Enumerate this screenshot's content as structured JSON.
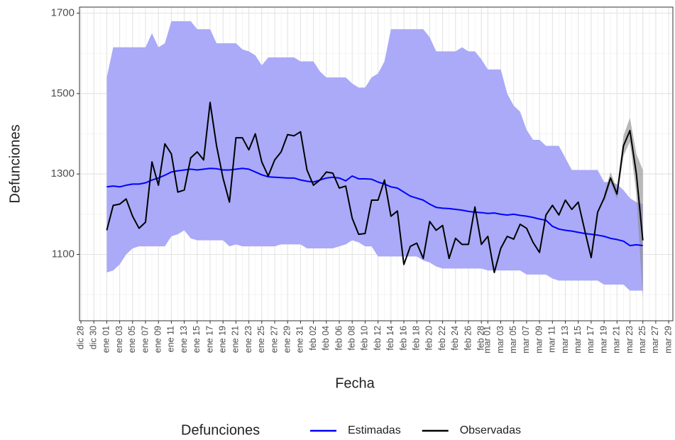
{
  "chart_data": {
    "type": "line",
    "x_label": "Fecha",
    "y_label": "Defunciones",
    "legend": "bottom",
    "legend_title": "Defunciones",
    "ylim": [
      935,
      1715
    ],
    "yticks": [
      1100,
      1300,
      1500,
      1700
    ],
    "yminor": [
      1000,
      1200,
      1400,
      1600
    ],
    "grid": true,
    "categories": [
      "dic 28",
      null,
      "dic 30",
      null,
      "ene 01",
      null,
      "ene 03",
      null,
      "ene 05",
      null,
      "ene 07",
      null,
      "ene 09",
      null,
      "ene 11",
      null,
      "ene 13",
      null,
      "ene 15",
      null,
      "ene 17",
      null,
      "ene 19",
      null,
      "ene 21",
      null,
      "ene 23",
      null,
      "ene 25",
      null,
      "ene 27",
      null,
      "ene 29",
      null,
      "ene 31",
      null,
      "feb 02",
      null,
      "feb 04",
      null,
      "feb 06",
      null,
      "feb 08",
      null,
      "feb 10",
      null,
      "feb 12",
      null,
      "feb 14",
      null,
      "feb 16",
      null,
      "feb 18",
      null,
      "feb 20",
      null,
      "feb 22",
      null,
      "feb 24",
      null,
      "feb 26",
      null,
      "feb 28",
      "mar 01",
      null,
      "mar 03",
      null,
      "mar 05",
      null,
      "mar 07",
      null,
      "mar 09",
      null,
      "mar 11",
      null,
      "mar 13",
      null,
      "mar 15",
      null,
      "mar 17",
      null,
      "mar 19",
      null,
      "mar 21",
      null,
      "mar 23",
      null,
      "mar 25",
      null,
      "mar 27",
      null,
      "mar 29"
    ],
    "bands": [
      {
        "color": "#aaaaf8",
        "upper": [
          null,
          null,
          null,
          null,
          1540,
          1615,
          1615,
          1615,
          1615,
          1615,
          1615,
          1650,
          1615,
          1625,
          1680,
          1680,
          1680,
          1680,
          1660,
          1660,
          1660,
          1625,
          1625,
          1625,
          1625,
          1610,
          1605,
          1595,
          1570,
          1590,
          1590,
          1590,
          1590,
          1590,
          1580,
          1580,
          1580,
          1555,
          1540,
          1540,
          1540,
          1540,
          1525,
          1515,
          1515,
          1540,
          1550,
          1580,
          1660,
          1660,
          1660,
          1660,
          1660,
          1660,
          1640,
          1605,
          1605,
          1605,
          1605,
          1615,
          1605,
          1605,
          1585,
          1560,
          1560,
          1560,
          1500,
          1470,
          1455,
          1410,
          1385,
          1385,
          1370,
          1370,
          1370,
          1340,
          1310,
          1310,
          1310,
          1310,
          1310,
          1280,
          1280,
          1275,
          1260,
          1240,
          1230,
          1225,
          null,
          null,
          null,
          null
        ],
        "lower": [
          null,
          null,
          null,
          null,
          1055,
          1060,
          1075,
          1100,
          1115,
          1120,
          1120,
          1120,
          1120,
          1120,
          1145,
          1150,
          1160,
          1140,
          1135,
          1135,
          1135,
          1135,
          1135,
          1120,
          1125,
          1120,
          1120,
          1120,
          1120,
          1120,
          1120,
          1125,
          1125,
          1125,
          1125,
          1115,
          1115,
          1115,
          1115,
          1115,
          1120,
          1125,
          1135,
          1130,
          1120,
          1120,
          1095,
          1095,
          1095,
          1095,
          1095,
          1095,
          1095,
          1085,
          1080,
          1070,
          1065,
          1065,
          1065,
          1065,
          1065,
          1065,
          1065,
          1060,
          1060,
          1060,
          1060,
          1060,
          1060,
          1050,
          1050,
          1050,
          1050,
          1040,
          1035,
          1035,
          1035,
          1035,
          1035,
          1035,
          1035,
          1025,
          1025,
          1025,
          1025,
          1010,
          1010,
          1010,
          null,
          null,
          null,
          null
        ]
      },
      {
        "color": "#888888",
        "upper": [
          null,
          null,
          null,
          null,
          null,
          null,
          null,
          null,
          null,
          null,
          null,
          null,
          null,
          null,
          null,
          null,
          null,
          null,
          null,
          null,
          null,
          null,
          null,
          null,
          null,
          null,
          null,
          null,
          null,
          null,
          null,
          null,
          null,
          null,
          null,
          null,
          null,
          null,
          null,
          null,
          null,
          null,
          null,
          null,
          null,
          null,
          null,
          null,
          null,
          null,
          null,
          null,
          null,
          null,
          null,
          null,
          null,
          null,
          null,
          null,
          null,
          null,
          null,
          null,
          null,
          null,
          null,
          null,
          null,
          null,
          null,
          null,
          null,
          null,
          null,
          null,
          null,
          null,
          null,
          null,
          null,
          1250,
          1305,
          1262,
          1395,
          1440,
          1350,
          1310,
          null,
          null,
          null,
          null
        ],
        "lower": [
          null,
          null,
          null,
          null,
          null,
          null,
          null,
          null,
          null,
          null,
          null,
          null,
          null,
          null,
          null,
          null,
          null,
          null,
          null,
          null,
          null,
          null,
          null,
          null,
          null,
          null,
          null,
          null,
          null,
          null,
          null,
          null,
          null,
          null,
          null,
          null,
          null,
          null,
          null,
          null,
          null,
          null,
          null,
          null,
          null,
          null,
          null,
          null,
          null,
          null,
          null,
          null,
          null,
          null,
          null,
          null,
          null,
          null,
          null,
          null,
          null,
          null,
          null,
          null,
          null,
          null,
          null,
          null,
          null,
          null,
          null,
          null,
          null,
          null,
          null,
          null,
          null,
          null,
          null,
          null,
          null,
          1230,
          1278,
          1238,
          1345,
          1380,
          1250,
          990,
          null,
          null,
          null,
          null
        ]
      }
    ],
    "series": [
      {
        "name": "Estimadas",
        "color": "#0000ff",
        "values": [
          null,
          null,
          null,
          null,
          1268,
          1270,
          1268,
          1272,
          1275,
          1275,
          1278,
          1285,
          1290,
          1297,
          1305,
          1308,
          1310,
          1312,
          1310,
          1312,
          1314,
          1313,
          1310,
          1310,
          1312,
          1314,
          1312,
          1305,
          1298,
          1293,
          1292,
          1291,
          1290,
          1290,
          1285,
          1282,
          1280,
          1285,
          1290,
          1292,
          1290,
          1283,
          1295,
          1288,
          1288,
          1287,
          1280,
          1275,
          1268,
          1265,
          1255,
          1245,
          1240,
          1235,
          1225,
          1217,
          1215,
          1214,
          1212,
          1210,
          1207,
          1205,
          1204,
          1202,
          1203,
          1200,
          1198,
          1200,
          1197,
          1195,
          1192,
          1188,
          1185,
          1170,
          1163,
          1160,
          1158,
          1155,
          1152,
          1150,
          1148,
          1145,
          1140,
          1137,
          1133,
          1122,
          1124,
          1122,
          null,
          null,
          null,
          null
        ]
      },
      {
        "name": "Observadas",
        "color": "#000000",
        "values": [
          null,
          null,
          null,
          null,
          1160,
          1222,
          1225,
          1238,
          1195,
          1165,
          1180,
          1330,
          1272,
          1375,
          1350,
          1255,
          1260,
          1340,
          1355,
          1335,
          1478,
          1370,
          1290,
          1230,
          1390,
          1390,
          1360,
          1400,
          1330,
          1295,
          1335,
          1355,
          1398,
          1395,
          1405,
          1310,
          1272,
          1285,
          1305,
          1302,
          1265,
          1270,
          1190,
          1150,
          1152,
          1235,
          1235,
          1285,
          1195,
          1208,
          1075,
          1120,
          1128,
          1090,
          1182,
          1160,
          1172,
          1090,
          1140,
          1125,
          1125,
          1218,
          1125,
          1145,
          1055,
          1115,
          1145,
          1138,
          1175,
          1165,
          1130,
          1105,
          1198,
          1222,
          1198,
          1235,
          1212,
          1230,
          1160,
          1092,
          1205,
          1240,
          1290,
          1250,
          1370,
          1408,
          1300,
          1135,
          null,
          null,
          null,
          null
        ]
      }
    ]
  }
}
